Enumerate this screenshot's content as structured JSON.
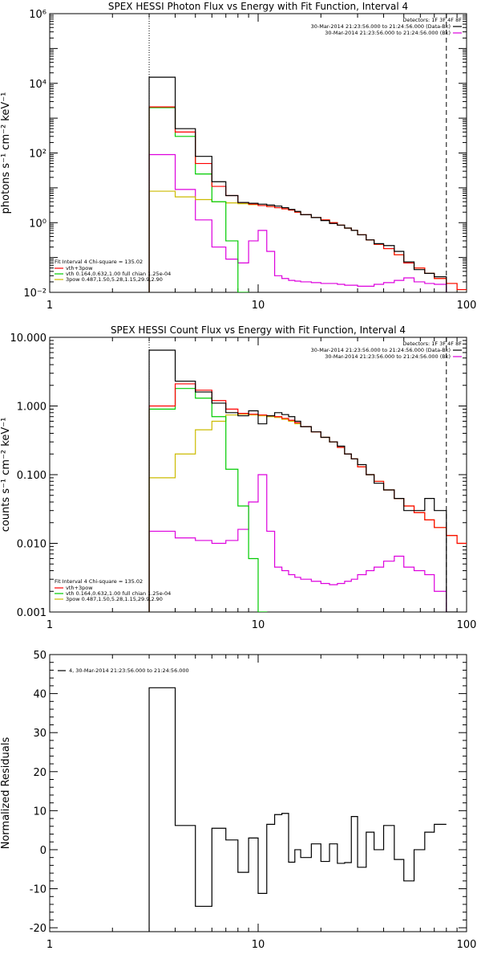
{
  "chart_data": [
    {
      "type": "line",
      "title": "SPEX HESSI Photon Flux vs Energy with Fit Function, Interval 4",
      "xlabel": "",
      "ylabel": "photons s⁻¹ cm⁻² keV⁻¹",
      "xscale": "log",
      "yscale": "log",
      "xlim": [
        1,
        100
      ],
      "ylim": [
        0.01,
        1000000
      ],
      "xticks": [
        1,
        10,
        100
      ],
      "xtick_labels": [
        "1",
        "10",
        "100"
      ],
      "yticks": [
        0.01,
        1,
        100,
        10000,
        1000000
      ],
      "ytick_labels": [
        "10⁻²",
        "10⁰",
        "10²",
        "10⁴",
        "10⁶"
      ],
      "vlines": [
        {
          "x": 3,
          "style": "dotted"
        },
        {
          "x": 80,
          "style": "dashed"
        }
      ],
      "bin_edges": [
        3,
        4,
        5,
        6,
        7,
        8,
        9,
        10,
        11,
        12,
        13,
        14,
        15,
        16,
        18,
        20,
        22,
        24,
        26,
        28,
        30,
        33,
        36,
        40,
        45,
        50,
        56,
        63,
        70,
        80,
        90,
        100
      ],
      "series": [
        {
          "name": "data",
          "color": "#000000",
          "values": [
            15000,
            500,
            80,
            15,
            6,
            3.8,
            3.6,
            3.4,
            3.2,
            3.0,
            2.7,
            2.4,
            2.1,
            1.7,
            1.4,
            1.15,
            0.95,
            0.85,
            0.7,
            0.6,
            0.45,
            0.32,
            0.25,
            0.22,
            0.15,
            0.075,
            0.045,
            0.035,
            0.028,
            null,
            null
          ]
        },
        {
          "name": "vth+3pow",
          "color": "#ff0000",
          "values": [
            2100,
            400,
            50,
            11,
            6,
            3.8,
            3.4,
            3.1,
            2.9,
            2.7,
            2.5,
            2.3,
            2.0,
            1.7,
            1.4,
            1.2,
            1.0,
            0.85,
            0.7,
            0.6,
            0.45,
            0.32,
            0.24,
            0.18,
            0.12,
            0.07,
            0.05,
            0.035,
            0.025,
            0.018,
            0.012
          ]
        },
        {
          "name": "vth 0.164,0.632,1.00 full chian 1.25e-04",
          "color": "#00cc00",
          "values": [
            2000,
            300,
            25,
            4,
            0.3,
            0.01,
            null,
            null,
            null,
            null,
            null,
            null,
            null,
            null,
            null,
            null,
            null,
            null,
            null,
            null,
            null,
            null,
            null,
            null,
            null,
            null,
            null,
            null,
            null,
            null,
            null
          ]
        },
        {
          "name": "3pow 0.487,1.50,5.28,1.15,29.9,2.90",
          "color": "#ccbb00",
          "values": [
            8,
            5.5,
            4.6,
            4.0,
            3.7,
            3.5,
            3.3,
            3.1,
            2.9,
            2.7,
            2.5,
            2.3,
            2.0,
            1.7,
            1.4,
            1.2,
            1.0,
            0.85,
            0.7,
            0.6,
            0.45,
            0.32,
            0.24,
            0.18,
            0.12,
            0.07,
            0.05,
            0.035,
            0.025,
            0.018,
            0.012
          ]
        },
        {
          "name": "background",
          "color": "#dd00dd",
          "values": [
            90,
            9,
            1.2,
            0.2,
            0.09,
            0.07,
            0.3,
            0.6,
            0.15,
            0.03,
            0.025,
            0.022,
            0.021,
            0.02,
            0.019,
            0.018,
            0.018,
            0.017,
            0.016,
            0.016,
            0.015,
            0.015,
            0.017,
            0.019,
            0.022,
            0.026,
            0.02,
            0.018,
            0.017,
            null,
            null
          ]
        }
      ],
      "legend": {
        "placement": "top-right",
        "detectors": "Detectors: 1F 3F 4F 8F",
        "lines": [
          {
            "text": "30-Mar-2014 21:23:56.000 to 21:24:56.000 (Data-Bk)",
            "color": "#000000"
          },
          {
            "text": "30-Mar-2014 21:23:56.000 to 21:24:56.000 (Bk)",
            "color": "#dd00dd"
          }
        ]
      },
      "fit_legend": {
        "placement": "bottom-left",
        "header": "Fit Interval 4   Chi-square = 135.02",
        "lines": [
          {
            "text": "vth+3pow",
            "color": "#ff0000"
          },
          {
            "text": "vth 0.164,0.632,1.00  full chian 1.25e-04",
            "color": "#00cc00"
          },
          {
            "text": "3pow 0.487,1.50,5.28,1.15,29.9,2.90",
            "color": "#ccbb00"
          }
        ]
      }
    },
    {
      "type": "line",
      "title": "SPEX HESSI Count Flux vs Energy with Fit Function, Interval 4",
      "xlabel": "",
      "ylabel": "counts s⁻¹ cm⁻² keV⁻¹",
      "xscale": "log",
      "yscale": "log",
      "xlim": [
        1,
        100
      ],
      "ylim": [
        0.001,
        10
      ],
      "xticks": [
        1,
        10,
        100
      ],
      "xtick_labels": [
        "1",
        "10",
        "100"
      ],
      "yticks": [
        0.001,
        0.01,
        0.1,
        1,
        10
      ],
      "ytick_labels": [
        "0.001",
        "0.010",
        "0.100",
        "1.000",
        "10.000"
      ],
      "vlines": [
        {
          "x": 3,
          "style": "dotted"
        },
        {
          "x": 80,
          "style": "dashed"
        }
      ],
      "bin_edges": [
        3,
        4,
        5,
        6,
        7,
        8,
        9,
        10,
        11,
        12,
        13,
        14,
        15,
        16,
        18,
        20,
        22,
        24,
        26,
        28,
        30,
        33,
        36,
        40,
        45,
        50,
        56,
        63,
        70,
        80,
        90,
        100
      ],
      "series": [
        {
          "name": "data",
          "color": "#000000",
          "values": [
            6.5,
            2.3,
            1.6,
            1.1,
            0.8,
            0.72,
            0.85,
            0.55,
            0.72,
            0.8,
            0.75,
            0.7,
            0.6,
            0.5,
            0.42,
            0.35,
            0.3,
            0.26,
            0.2,
            0.17,
            0.14,
            0.1,
            0.075,
            0.06,
            0.045,
            0.03,
            0.03,
            0.045,
            0.03,
            0.001,
            null
          ]
        },
        {
          "name": "vth+3pow",
          "color": "#ff0000",
          "values": [
            1.0,
            2.1,
            1.7,
            1.2,
            0.9,
            0.78,
            0.76,
            0.74,
            0.72,
            0.7,
            0.66,
            0.62,
            0.57,
            0.5,
            0.42,
            0.35,
            0.3,
            0.25,
            0.2,
            0.17,
            0.13,
            0.1,
            0.08,
            0.06,
            0.045,
            0.035,
            0.028,
            0.022,
            0.017,
            0.013,
            0.01
          ]
        },
        {
          "name": "vth 0.164,0.632,1.00 full chian 1.25e-04",
          "color": "#00cc00",
          "values": [
            0.9,
            1.8,
            1.3,
            0.7,
            0.12,
            0.035,
            0.006,
            0.001,
            null,
            null,
            null,
            null,
            null,
            null,
            null,
            null,
            null,
            null,
            null,
            null,
            null,
            null,
            null,
            null,
            null,
            null,
            null,
            null,
            null,
            null,
            null
          ]
        },
        {
          "name": "3pow 0.487,1.50,5.28,1.15,29.9,2.90",
          "color": "#ccbb00",
          "values": [
            0.09,
            0.2,
            0.45,
            0.6,
            0.74,
            0.76,
            0.74,
            0.72,
            0.7,
            0.68,
            0.64,
            0.6,
            0.55,
            0.5,
            0.42,
            0.35,
            0.3,
            0.25,
            0.2,
            0.17,
            0.13,
            0.1,
            0.08,
            0.06,
            0.045,
            0.035,
            0.028,
            0.022,
            0.017,
            0.013,
            0.01
          ]
        },
        {
          "name": "background",
          "color": "#dd00dd",
          "values": [
            0.015,
            0.012,
            0.011,
            0.01,
            0.011,
            0.016,
            0.04,
            0.1,
            0.015,
            0.0045,
            0.004,
            0.0035,
            0.0032,
            0.003,
            0.0028,
            0.0026,
            0.0025,
            0.0026,
            0.0028,
            0.003,
            0.0035,
            0.004,
            0.0045,
            0.0055,
            0.0065,
            0.0045,
            0.004,
            0.0035,
            0.002,
            null,
            null
          ]
        }
      ],
      "legend": {
        "placement": "top-right",
        "detectors": "Detectors: 1F 3F 4F 8F",
        "lines": [
          {
            "text": "30-Mar-2014 21:23:56.000 to 21:24:56.000 (Data-Bk)",
            "color": "#000000"
          },
          {
            "text": "30-Mar-2014 21:23:56.000 to 21:24:56.000 (Bk)",
            "color": "#dd00dd"
          }
        ]
      },
      "fit_legend": {
        "placement": "bottom-left",
        "header": "Fit Interval 4   Chi-square = 135.02",
        "lines": [
          {
            "text": "vth+3pow",
            "color": "#ff0000"
          },
          {
            "text": "vth 0.164,0.632,1.00  full chian 1.25e-04",
            "color": "#00cc00"
          },
          {
            "text": "3pow 0.487,1.50,5.28,1.15,29.9,2.90",
            "color": "#ccbb00"
          }
        ]
      }
    },
    {
      "type": "line",
      "title": "",
      "xlabel": "",
      "ylabel": "Normalized Residuals",
      "xscale": "log",
      "yscale": "linear",
      "xlim": [
        1,
        100
      ],
      "ylim": [
        -21,
        50
      ],
      "xticks": [
        1,
        10,
        100
      ],
      "xtick_labels": [
        "1",
        "10",
        "100"
      ],
      "yticks": [
        -20,
        -10,
        0,
        10,
        20,
        30,
        40,
        50
      ],
      "ytick_labels": [
        "-20",
        "-10",
        "0",
        "10",
        "20",
        "30",
        "40",
        "50"
      ],
      "bin_edges": [
        3,
        4,
        5,
        6,
        7,
        8,
        9,
        10,
        11,
        12,
        13,
        14,
        15,
        16,
        18,
        20,
        22,
        24,
        26,
        28,
        30,
        33,
        36,
        40,
        45,
        50,
        56,
        63,
        70,
        80
      ],
      "series": [
        {
          "name": "4, 30-Mar-2014 21:23:56.000 to 21:24:56.000",
          "color": "#000000",
          "values": [
            41.5,
            6.2,
            -14.5,
            5.5,
            2.5,
            -5.8,
            3,
            -11.2,
            6.5,
            9,
            9.3,
            -3.2,
            0,
            -2,
            1.5,
            -3,
            1.5,
            -3.5,
            -3.3,
            8.5,
            -4.5,
            4.5,
            0,
            6.2,
            -2.5,
            -8,
            0,
            4.5,
            6.5
          ]
        }
      ],
      "legend": {
        "placement": "top-left",
        "lines": [
          {
            "text": "4, 30-Mar-2014 21:23:56.000 to 21:24:56.000",
            "color": "#000000"
          }
        ]
      }
    }
  ]
}
